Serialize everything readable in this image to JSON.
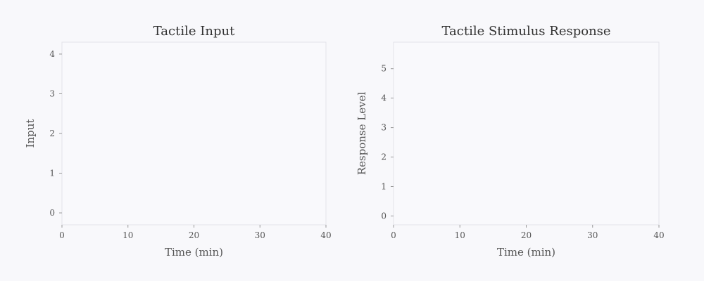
{
  "chart_data": [
    {
      "type": "line",
      "title": "Tactile Input",
      "xlabel": "Time (min)",
      "ylabel": "Input",
      "xlim": [
        0,
        40
      ],
      "ylim": [
        -0.3,
        4.3
      ],
      "x_ticks": [
        0,
        10,
        20,
        30,
        40
      ],
      "y_ticks": [
        0,
        1,
        2,
        3,
        4
      ],
      "series": [],
      "grid": false,
      "frame_color": "#e3e3ea"
    },
    {
      "type": "line",
      "title": "Tactile Stimulus Response",
      "xlabel": "Time (min)",
      "ylabel": "Response Level",
      "xlim": [
        0,
        40
      ],
      "ylim": [
        -0.3,
        5.9
      ],
      "x_ticks": [
        0,
        10,
        20,
        30,
        40
      ],
      "y_ticks": [
        0,
        1,
        2,
        3,
        4,
        5
      ],
      "series": [],
      "grid": false,
      "frame_color": "#e3e3ea"
    }
  ]
}
